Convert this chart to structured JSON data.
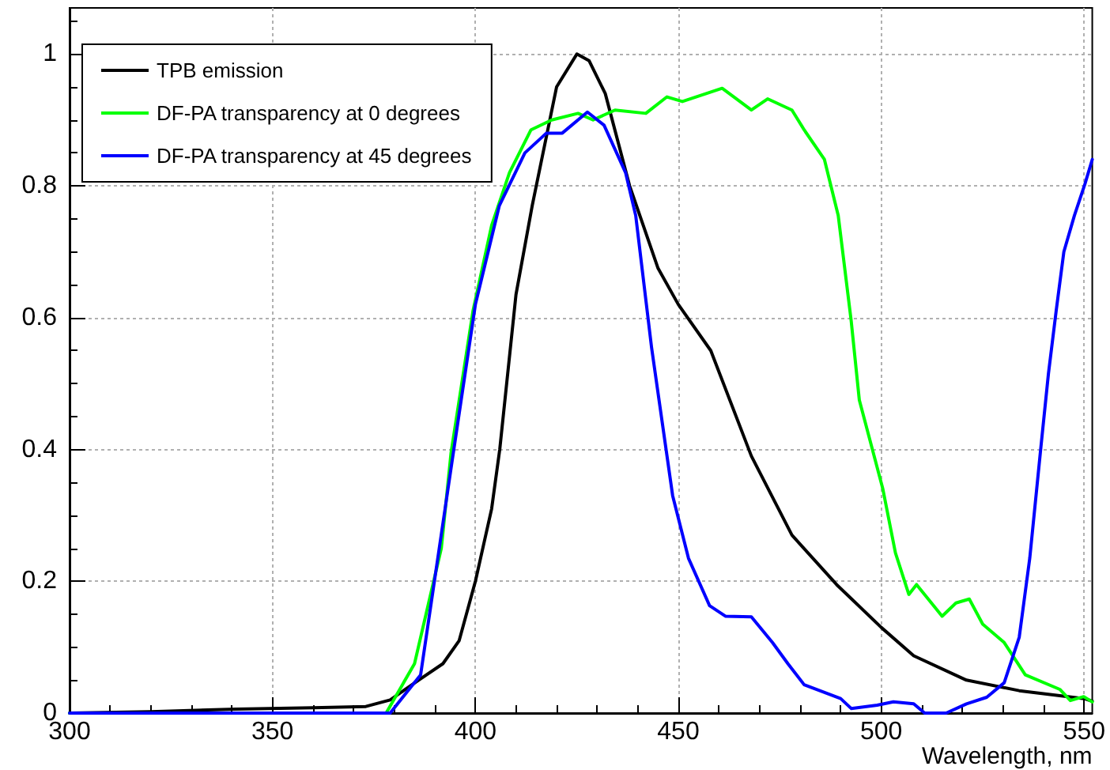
{
  "chart_data": {
    "type": "line",
    "xlabel": "Wavelength, nm",
    "xlim": [
      300,
      552
    ],
    "ylim": [
      0,
      1.07
    ],
    "xticks": [
      300,
      350,
      400,
      450,
      500,
      550
    ],
    "yticks": [
      0,
      0.2,
      0.4,
      0.6,
      0.8,
      1
    ],
    "grid": true,
    "legend": "top left",
    "marker": "none",
    "line_style": "solid",
    "series": [
      {
        "name": "TPB emission",
        "color": "#000000",
        "x": [
          300,
          320,
          341,
          360,
          373,
          379,
          386,
          392,
          396,
          400,
          404,
          406,
          410,
          414,
          420,
          425,
          428,
          432,
          438,
          445,
          450,
          458,
          468,
          473,
          478,
          489,
          500,
          508,
          521,
          534,
          550,
          552
        ],
        "values": [
          0,
          0.002,
          0.006,
          0.008,
          0.01,
          0.02,
          0.05,
          0.075,
          0.11,
          0.2,
          0.31,
          0.4,
          0.635,
          0.77,
          0.95,
          1.0,
          0.99,
          0.94,
          0.8,
          0.675,
          0.62,
          0.55,
          0.39,
          0.33,
          0.27,
          0.195,
          0.13,
          0.087,
          0.05,
          0.034,
          0.022,
          0.018
        ]
      },
      {
        "name": "DF-PA transparency at 0 degrees",
        "color": "#00ff00",
        "x": [
          300,
          378,
          385,
          391.6,
          394,
          399.4,
          404,
          408.4,
          413.7,
          418.8,
          425.3,
          429,
          434.4,
          442,
          447.2,
          451,
          460.8,
          468,
          472,
          478,
          481,
          486,
          489.4,
          492.6,
          494.6,
          500.4,
          503.5,
          506.8,
          508.7,
          515,
          518.4,
          521.7,
          525,
          530.3,
          535.5,
          544,
          546.6,
          549.9,
          552
        ],
        "values": [
          0,
          0,
          0.075,
          0.25,
          0.395,
          0.61,
          0.74,
          0.82,
          0.885,
          0.9,
          0.91,
          0.9,
          0.915,
          0.91,
          0.935,
          0.928,
          0.948,
          0.915,
          0.932,
          0.915,
          0.885,
          0.84,
          0.755,
          0.595,
          0.475,
          0.34,
          0.243,
          0.18,
          0.195,
          0.147,
          0.167,
          0.173,
          0.135,
          0.107,
          0.058,
          0.036,
          0.019,
          0.025,
          0.017
        ]
      },
      {
        "name": "DF-PA transparency at 45 degrees",
        "color": "#0000ff",
        "x": [
          300,
          379,
          386.5,
          394.2,
          400,
          405.9,
          412.2,
          417.5,
          421.4,
          427.6,
          431.7,
          437,
          439.5,
          443.4,
          448.6,
          452.5,
          457.7,
          461.6,
          468,
          473.2,
          477,
          481,
          490,
          492.6,
          499,
          503,
          508,
          510.7,
          516,
          521,
          526,
          530.3,
          534,
          536.6,
          539.2,
          541.2,
          543.1,
          545,
          547.6,
          550.2,
          552
        ],
        "values": [
          0,
          0,
          0.058,
          0.38,
          0.62,
          0.77,
          0.85,
          0.88,
          0.88,
          0.912,
          0.892,
          0.82,
          0.755,
          0.555,
          0.33,
          0.235,
          0.163,
          0.147,
          0.146,
          0.107,
          0.075,
          0.043,
          0.022,
          0.007,
          0.012,
          0.017,
          0.014,
          0,
          0,
          0.014,
          0.024,
          0.046,
          0.115,
          0.235,
          0.395,
          0.515,
          0.61,
          0.7,
          0.755,
          0.803,
          0.84
        ]
      }
    ]
  }
}
